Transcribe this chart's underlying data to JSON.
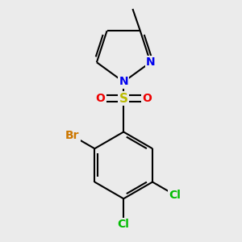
{
  "background_color": "#ebebeb",
  "atom_colors": {
    "N": "#0000ee",
    "O": "#ee0000",
    "S": "#bbbb00",
    "Br": "#cc7700",
    "Cl": "#00bb00",
    "C": "#000000"
  },
  "bond_color": "#000000",
  "bond_width": 1.5,
  "font_size": 10,
  "figsize": [
    3.0,
    3.0
  ],
  "dpi": 100,
  "xlim": [
    -0.65,
    0.65
  ],
  "ylim": [
    -0.8,
    1.05
  ]
}
